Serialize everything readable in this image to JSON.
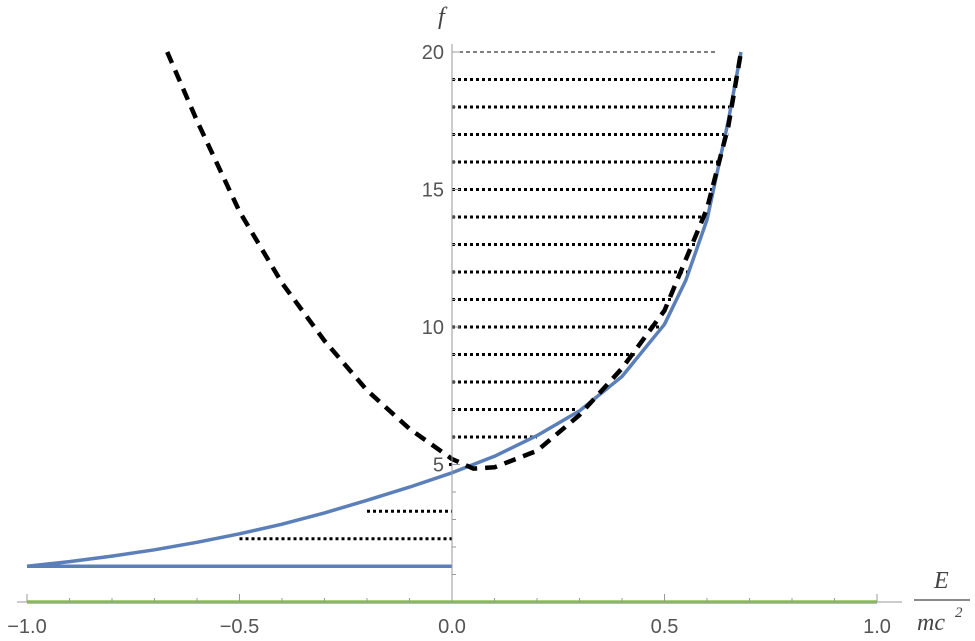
{
  "chart_data": {
    "type": "line",
    "title": "",
    "xlabel": {
      "numerator": "E",
      "denominator": "mc",
      "exponent": "2"
    },
    "ylabel": "f",
    "xlim": [
      -1.0,
      1.0
    ],
    "ylim": [
      0,
      20
    ],
    "grid": false,
    "legend": "none",
    "x_ticks": [
      {
        "value": -1.0,
        "label": "−1.0"
      },
      {
        "value": -0.5,
        "label": "−0.5"
      },
      {
        "value": 0.0,
        "label": "0.0"
      },
      {
        "value": 0.5,
        "label": "0.5"
      },
      {
        "value": 1.0,
        "label": "1.0"
      }
    ],
    "y_ticks": [
      {
        "value": 5,
        "label": "5"
      },
      {
        "value": 10,
        "label": "10"
      },
      {
        "value": 15,
        "label": "15"
      },
      {
        "value": 20,
        "label": "20"
      }
    ],
    "series": [
      {
        "style": "solid",
        "color": "#5b7fb8",
        "x": [
          -1.0,
          -0.9,
          -0.8,
          -0.7,
          -0.6,
          -0.5,
          -0.4,
          -0.3,
          -0.2,
          -0.1,
          0.0,
          0.1,
          0.2,
          0.3,
          0.4,
          0.5,
          0.55,
          0.6,
          0.65,
          0.68
        ],
        "y": [
          1.3,
          1.47,
          1.67,
          1.9,
          2.17,
          2.48,
          2.83,
          3.24,
          3.7,
          4.18,
          4.7,
          5.3,
          6.05,
          6.95,
          8.2,
          10.1,
          11.7,
          13.9,
          17.5,
          20.0
        ]
      },
      {
        "style": "dashed",
        "color": "#000000",
        "x": [
          -0.67,
          -0.6,
          -0.5,
          -0.4,
          -0.3,
          -0.2,
          -0.1,
          0.0,
          0.05,
          0.1,
          0.2,
          0.3,
          0.4,
          0.5,
          0.6,
          0.65,
          0.68
        ],
        "y": [
          20.0,
          17.5,
          14.2,
          11.6,
          9.5,
          7.7,
          6.3,
          5.2,
          4.85,
          4.9,
          5.5,
          6.8,
          8.5,
          10.6,
          14.3,
          17.3,
          20.0
        ]
      },
      {
        "style": "solid",
        "color": "#5b7fb8",
        "x": [
          -1.0,
          0.0
        ],
        "y": [
          1.3,
          1.3
        ]
      },
      {
        "style": "solid",
        "color": "#8bc34a",
        "x": [
          -1.0,
          1.0
        ],
        "y": [
          0,
          0
        ]
      }
    ],
    "level_lines": [
      {
        "y": 2.3,
        "x_start": -0.5,
        "x_end": 0.0
      },
      {
        "y": 3.3,
        "x_start": -0.2,
        "x_end": 0.0
      },
      {
        "y": 5.0,
        "x_start": 0.0,
        "x_end": 0.0
      },
      {
        "y": 6.0,
        "x_start": 0.0,
        "x_end": 0.2
      },
      {
        "y": 7.0,
        "x_start": 0.0,
        "x_end": 0.29
      },
      {
        "y": 8.0,
        "x_start": 0.0,
        "x_end": 0.35
      },
      {
        "y": 9.0,
        "x_start": 0.0,
        "x_end": 0.43
      },
      {
        "y": 10.0,
        "x_start": 0.0,
        "x_end": 0.49
      },
      {
        "y": 11.0,
        "x_start": 0.0,
        "x_end": 0.52
      },
      {
        "y": 12.0,
        "x_start": 0.0,
        "x_end": 0.56
      },
      {
        "y": 13.0,
        "x_start": 0.0,
        "x_end": 0.58
      },
      {
        "y": 14.0,
        "x_start": 0.0,
        "x_end": 0.6
      },
      {
        "y": 15.0,
        "x_start": 0.0,
        "x_end": 0.62
      },
      {
        "y": 16.0,
        "x_start": 0.0,
        "x_end": 0.63
      },
      {
        "y": 17.0,
        "x_start": 0.0,
        "x_end": 0.65
      },
      {
        "y": 18.0,
        "x_start": 0.0,
        "x_end": 0.66
      },
      {
        "y": 19.0,
        "x_start": 0.0,
        "x_end": 0.67
      },
      {
        "y": 20.0,
        "x_start": 0.0,
        "x_end": 0.68
      }
    ]
  }
}
